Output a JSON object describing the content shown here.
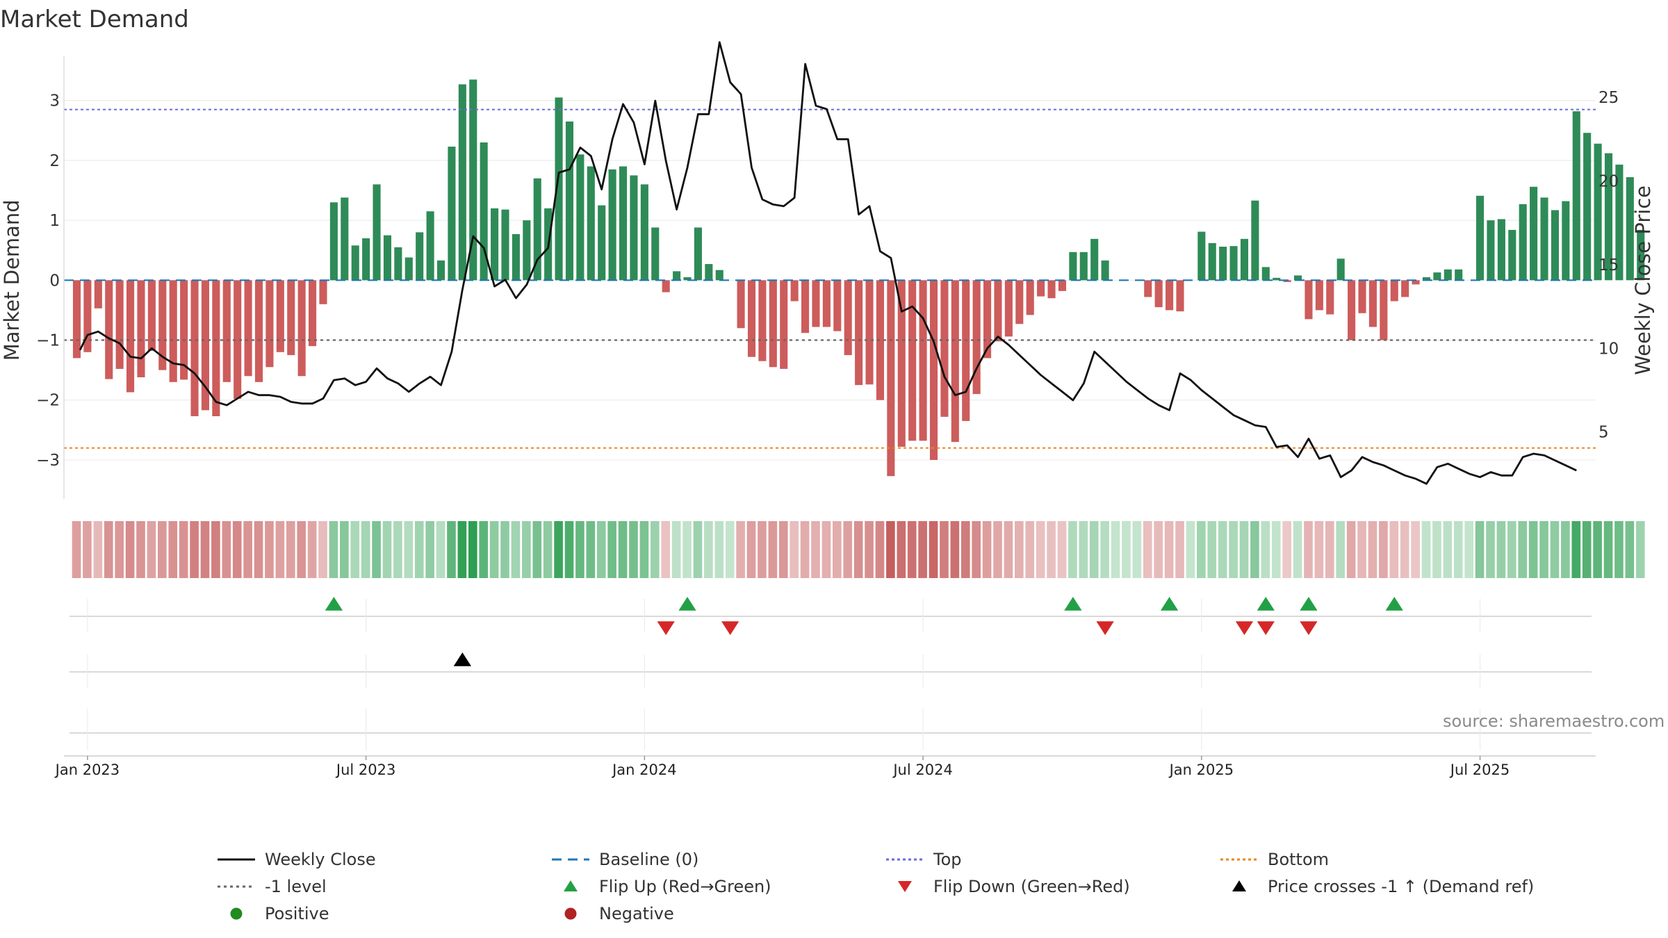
{
  "title": "Market Demand",
  "source": "source: sharemaestro.com",
  "colors": {
    "positive_bar": "#2e8b57",
    "negative_bar": "#cd5c5c",
    "weekly_close": "#111111",
    "baseline": "#1f77b4",
    "top": "#6a6adb",
    "bottom": "#e8861f",
    "minus_one": "#666666",
    "flip_up": "#22a046",
    "flip_down": "#d62728",
    "cross": "#000000",
    "positive_dot": "#228b22",
    "negative_dot": "#b22222"
  },
  "chart_data": {
    "type": "bar+line",
    "title": "Market Demand",
    "ylabel": "Market Demand",
    "y2label": "Weekly Close Price",
    "ylim": [
      -3.65,
      3.75
    ],
    "y2lim": [
      1.0,
      27.5
    ],
    "y_ticks": [
      -3,
      -2,
      -1,
      0,
      1,
      2,
      3
    ],
    "y_tick_labels": [
      "−3",
      "−2",
      "−1",
      "0",
      "1",
      "2",
      "3"
    ],
    "y2_ticks": [
      5,
      10,
      15,
      20,
      25
    ],
    "y2_tick_labels": [
      "5",
      "10",
      "15",
      "20",
      "25"
    ],
    "x_tick_weeks": [
      1,
      27,
      53,
      79,
      105,
      131
    ],
    "x_tick_labels": [
      "Jan 2023",
      "Jul 2023",
      "Jan 2024",
      "Jul 2024",
      "Jan 2025",
      "Jul 2025"
    ],
    "week_start": -1.2,
    "week_end": 141.8,
    "top_level": 2.85,
    "bottom_level": -2.8,
    "minus_one_level": -1.0,
    "demand": [
      -1.3,
      -1.2,
      -0.47,
      -1.65,
      -1.48,
      -1.87,
      -1.62,
      -1.18,
      -1.5,
      -1.7,
      -1.66,
      -2.27,
      -2.17,
      -2.27,
      -1.7,
      -1.98,
      -1.6,
      -1.7,
      -1.45,
      -1.2,
      -1.25,
      -1.6,
      -1.1,
      -0.4,
      1.3,
      1.38,
      0.58,
      0.7,
      1.6,
      0.75,
      0.55,
      0.38,
      0.8,
      1.15,
      0.33,
      2.23,
      3.27,
      3.35,
      2.3,
      1.2,
      1.18,
      0.77,
      1.0,
      1.7,
      1.2,
      3.05,
      2.65,
      2.1,
      1.9,
      1.25,
      1.85,
      1.9,
      1.75,
      1.6,
      0.88,
      -0.2,
      0.15,
      0.05,
      0.88,
      0.27,
      0.17,
      0.0,
      -0.8,
      -1.28,
      -1.35,
      -1.45,
      -1.48,
      -0.35,
      -0.88,
      -0.78,
      -0.78,
      -0.85,
      -1.25,
      -1.75,
      -1.74,
      -2.0,
      -3.27,
      -2.78,
      -2.68,
      -2.68,
      -3.0,
      -2.28,
      -2.7,
      -2.35,
      -1.9,
      -1.3,
      -1.02,
      -0.94,
      -0.73,
      -0.58,
      -0.27,
      -0.3,
      -0.18,
      0.47,
      0.47,
      0.69,
      0.33,
      0.0,
      0.0,
      0.0,
      -0.28,
      -0.45,
      -0.5,
      -0.52,
      0.0,
      0.81,
      0.62,
      0.56,
      0.57,
      0.69,
      1.33,
      0.22,
      0.04,
      -0.03,
      0.08,
      -0.65,
      -0.5,
      -0.57,
      0.36,
      -1.0,
      -0.55,
      -0.78,
      -1.0,
      -0.35,
      -0.28,
      -0.07,
      0.05,
      0.13,
      0.18,
      0.18,
      0.0,
      1.41,
      1.0,
      1.02,
      0.84,
      1.27,
      1.56,
      1.38,
      1.17,
      1.32,
      2.82,
      2.46,
      2.28,
      2.12,
      1.93,
      1.72,
      0.84
    ],
    "weekly_close": [
      [
        0.3,
        9.9
      ],
      [
        1,
        10.8
      ],
      [
        2,
        11.0
      ],
      [
        3,
        10.6
      ],
      [
        4,
        10.3
      ],
      [
        5,
        9.5
      ],
      [
        6,
        9.4
      ],
      [
        7,
        10.0
      ],
      [
        8,
        9.5
      ],
      [
        9,
        9.1
      ],
      [
        10,
        9.0
      ],
      [
        11,
        8.5
      ],
      [
        12,
        7.7
      ],
      [
        13,
        6.8
      ],
      [
        14,
        6.6
      ],
      [
        15,
        7.0
      ],
      [
        16,
        7.4
      ],
      [
        17,
        7.2
      ],
      [
        18,
        7.2
      ],
      [
        19,
        7.1
      ],
      [
        20,
        6.8
      ],
      [
        21,
        6.7
      ],
      [
        22,
        6.7
      ],
      [
        23,
        7.0
      ],
      [
        24,
        8.1
      ],
      [
        25,
        8.2
      ],
      [
        26,
        7.8
      ],
      [
        27,
        8.0
      ],
      [
        28,
        8.8
      ],
      [
        29,
        8.2
      ],
      [
        30,
        7.9
      ],
      [
        31,
        7.4
      ],
      [
        32,
        7.9
      ],
      [
        33,
        8.3
      ],
      [
        34,
        7.8
      ],
      [
        35,
        9.8
      ],
      [
        36,
        13.5
      ],
      [
        37,
        16.7
      ],
      [
        38,
        16.0
      ],
      [
        39,
        13.7
      ],
      [
        40,
        14.1
      ],
      [
        41,
        13.0
      ],
      [
        42,
        13.8
      ],
      [
        43,
        15.3
      ],
      [
        44,
        16.0
      ],
      [
        45,
        20.5
      ],
      [
        46,
        20.7
      ],
      [
        47,
        22.0
      ],
      [
        48,
        21.5
      ],
      [
        49,
        19.5
      ],
      [
        50,
        22.5
      ],
      [
        51,
        24.6
      ],
      [
        52,
        23.5
      ],
      [
        53,
        21.0
      ],
      [
        54,
        24.8
      ],
      [
        55,
        21.2
      ],
      [
        56,
        18.3
      ],
      [
        57,
        20.8
      ],
      [
        58,
        24.0
      ],
      [
        59,
        24.0
      ],
      [
        60,
        28.3
      ],
      [
        61,
        25.9
      ],
      [
        62,
        25.2
      ],
      [
        63,
        20.8
      ],
      [
        64,
        18.9
      ],
      [
        65,
        18.6
      ],
      [
        66,
        18.5
      ],
      [
        67,
        19.0
      ],
      [
        68,
        27.0
      ],
      [
        69,
        24.5
      ],
      [
        70,
        24.3
      ],
      [
        71,
        22.5
      ],
      [
        72,
        22.5
      ],
      [
        73,
        18.0
      ],
      [
        74,
        18.5
      ],
      [
        75,
        15.8
      ],
      [
        76,
        15.4
      ],
      [
        77,
        12.2
      ],
      [
        78,
        12.5
      ],
      [
        79,
        11.8
      ],
      [
        80,
        10.4
      ],
      [
        81,
        8.3
      ],
      [
        82,
        7.2
      ],
      [
        83,
        7.4
      ],
      [
        84,
        8.8
      ],
      [
        85,
        10.0
      ],
      [
        86,
        10.7
      ],
      [
        87,
        10.2
      ],
      [
        88,
        9.6
      ],
      [
        89,
        9.0
      ],
      [
        90,
        8.4
      ],
      [
        91,
        7.9
      ],
      [
        92,
        7.4
      ],
      [
        93,
        6.9
      ],
      [
        94,
        7.9
      ],
      [
        95,
        9.8
      ],
      [
        96,
        9.2
      ],
      [
        97,
        8.6
      ],
      [
        98,
        8.0
      ],
      [
        99,
        7.5
      ],
      [
        100,
        7.0
      ],
      [
        101,
        6.6
      ],
      [
        102,
        6.3
      ],
      [
        103,
        8.5
      ],
      [
        104,
        8.1
      ],
      [
        105,
        7.5
      ],
      [
        106,
        7.0
      ],
      [
        107,
        6.5
      ],
      [
        108,
        6.0
      ],
      [
        109,
        5.7
      ],
      [
        110,
        5.4
      ],
      [
        111,
        5.3
      ],
      [
        112,
        4.1
      ],
      [
        113,
        4.2
      ],
      [
        114,
        3.5
      ],
      [
        115,
        4.6
      ],
      [
        116,
        3.4
      ],
      [
        117,
        3.6
      ],
      [
        118,
        2.3
      ],
      [
        119,
        2.7
      ],
      [
        120,
        3.5
      ],
      [
        121,
        3.2
      ],
      [
        122,
        3.0
      ],
      [
        123,
        2.7
      ],
      [
        124,
        2.4
      ],
      [
        125,
        2.2
      ],
      [
        126,
        1.9
      ],
      [
        127,
        2.9
      ],
      [
        128,
        3.1
      ],
      [
        129,
        2.8
      ],
      [
        130,
        2.5
      ],
      [
        131,
        2.3
      ],
      [
        132,
        2.6
      ],
      [
        133,
        2.4
      ],
      [
        134,
        2.4
      ],
      [
        135,
        3.5
      ],
      [
        136,
        3.7
      ],
      [
        137,
        3.6
      ],
      [
        138,
        3.3
      ],
      [
        139,
        3.0
      ],
      [
        140,
        2.7
      ]
    ],
    "flip_up_weeks": [
      24,
      57,
      93,
      102,
      111,
      115,
      123
    ],
    "flip_down_weeks": [
      55,
      61,
      96,
      109,
      111,
      115
    ],
    "cross_up_weeks": [
      36
    ]
  },
  "legend": [
    {
      "label": "Weekly Close",
      "kind": "line",
      "color": "#111111",
      "dash": ""
    },
    {
      "label": "Baseline (0)",
      "kind": "line",
      "color": "#1f77b4",
      "dash": "14 9"
    },
    {
      "label": "Top",
      "kind": "line",
      "color": "#6a6adb",
      "dash": "4 4"
    },
    {
      "label": "Bottom",
      "kind": "line",
      "color": "#e8861f",
      "dash": "4 4"
    },
    {
      "label": "-1 level",
      "kind": "line",
      "color": "#666666",
      "dash": "4 5"
    },
    {
      "label": "Flip Up (Red→Green)",
      "kind": "tri-up",
      "color": "#22a046"
    },
    {
      "label": "Flip Down (Green→Red)",
      "kind": "tri-down",
      "color": "#d62728"
    },
    {
      "label": "Price crosses -1 ↑ (Demand ref)",
      "kind": "tri-up",
      "color": "#000000"
    },
    {
      "label": "Positive",
      "kind": "dot",
      "color": "#228b22"
    },
    {
      "label": "Negative",
      "kind": "dot",
      "color": "#b22222"
    }
  ]
}
